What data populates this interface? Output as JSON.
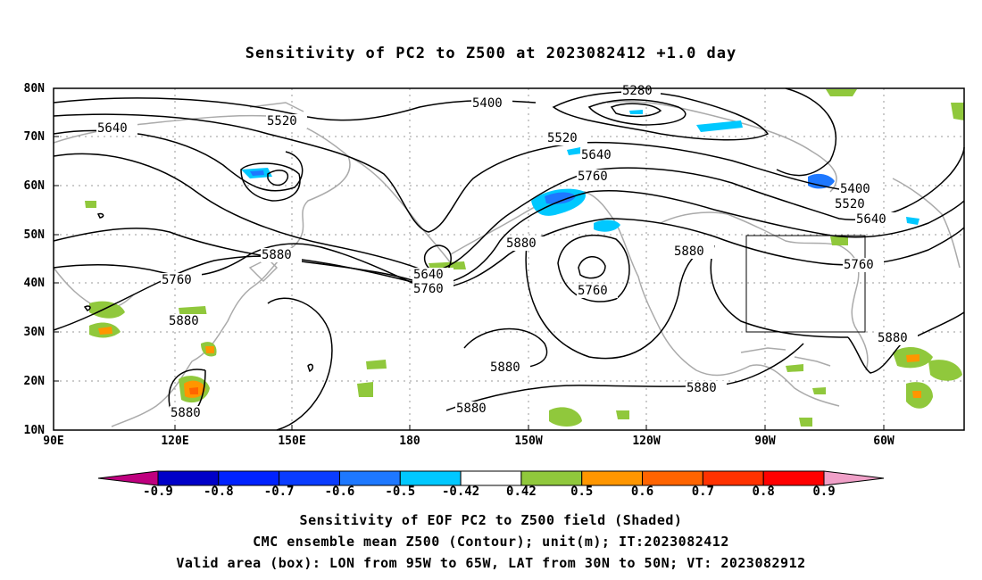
{
  "title": "Sensitivity of PC2 to Z500 at 2023082412 +1.0 day",
  "lat_labels": [
    "80N",
    "70N",
    "60N",
    "50N",
    "40N",
    "30N",
    "20N",
    "10N"
  ],
  "lon_labels": [
    "90E",
    "120E",
    "150E",
    "180",
    "150W",
    "120W",
    "90W",
    "60W"
  ],
  "contour_labels": [
    {
      "text": "5280"
    },
    {
      "text": "5400"
    },
    {
      "text": "5520"
    },
    {
      "text": "5520"
    },
    {
      "text": "5640"
    },
    {
      "text": "5640"
    },
    {
      "text": "5760"
    },
    {
      "text": "5400"
    },
    {
      "text": "5520"
    },
    {
      "text": "5640"
    },
    {
      "text": "5880"
    },
    {
      "text": "5760"
    },
    {
      "text": "5640"
    },
    {
      "text": "5760"
    },
    {
      "text": "5880"
    },
    {
      "text": "5760"
    },
    {
      "text": "5880"
    },
    {
      "text": "5760"
    },
    {
      "text": "5880"
    },
    {
      "text": "5880"
    },
    {
      "text": "5880"
    },
    {
      "text": "5880"
    },
    {
      "text": "5880"
    },
    {
      "text": "5880"
    }
  ],
  "colorbar": {
    "colors": [
      "#bf007f",
      "#0000c8",
      "#0022ff",
      "#0a3cff",
      "#1e78ff",
      "#00c8ff",
      "#ffffff",
      "#90c83c",
      "#ff9600",
      "#ff6400",
      "#ff3200",
      "#ff0000",
      "#f0a0c8"
    ],
    "labels": [
      "-0.9",
      "-0.8",
      "-0.7",
      "-0.6",
      "-0.5",
      "-0.42",
      "0.42",
      "0.5",
      "0.6",
      "0.7",
      "0.8",
      "0.9"
    ]
  },
  "footer": {
    "line1": "Sensitivity of EOF PC2 to Z500 field (Shaded)",
    "line2": "CMC ensemble mean Z500 (Contour); unit(m); IT:2023082412",
    "line3": "Valid area (box): LON from 95W to 65W, LAT from 30N to 50N; VT: 2023082912"
  }
}
